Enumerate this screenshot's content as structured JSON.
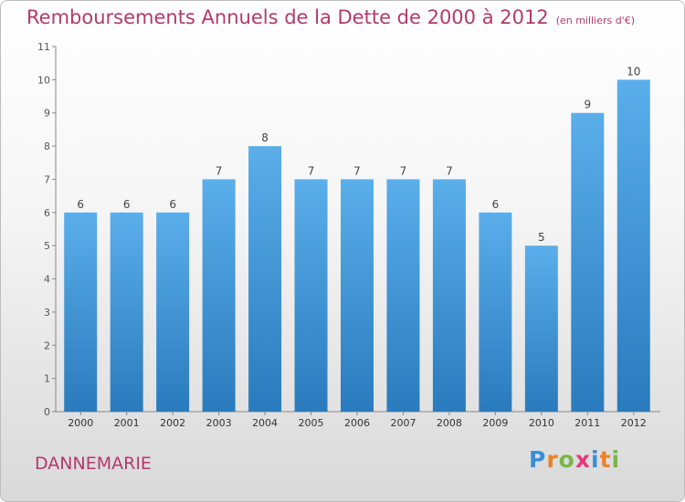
{
  "header": {
    "title": "Remboursements Annuels de la Dette de 2000 à 2012",
    "unit": "(en milliers d'€)"
  },
  "footer": {
    "city": "DANNEMARIE"
  },
  "logo": {
    "text": "Proxiti",
    "letters": [
      {
        "char": "P",
        "color": "#3a8fd6"
      },
      {
        "char": "r",
        "color": "#e9832c"
      },
      {
        "char": "o",
        "color": "#7ab648"
      },
      {
        "char": "x",
        "color": "#e23b7a"
      },
      {
        "char": "i",
        "color": "#3a8fd6"
      },
      {
        "char": "t",
        "color": "#e9832c"
      },
      {
        "char": "i",
        "color": "#7ab648"
      }
    ]
  },
  "chart_data": {
    "type": "bar",
    "title": "Remboursements Annuels de la Dette de 2000 à 2012",
    "xlabel": "",
    "ylabel": "",
    "categories": [
      "2000",
      "2001",
      "2002",
      "2003",
      "2004",
      "2005",
      "2006",
      "2007",
      "2008",
      "2009",
      "2010",
      "2011",
      "2012"
    ],
    "values": [
      6,
      6,
      6,
      7,
      8,
      7,
      7,
      7,
      7,
      6,
      5,
      9,
      10
    ],
    "ylim": [
      0,
      11
    ],
    "yticks": [
      0,
      1,
      2,
      3,
      4,
      5,
      6,
      7,
      8,
      9,
      10,
      11
    ],
    "grid": false,
    "bar_color_top": "#5aaeea",
    "bar_color_bottom": "#2a7bbd"
  }
}
